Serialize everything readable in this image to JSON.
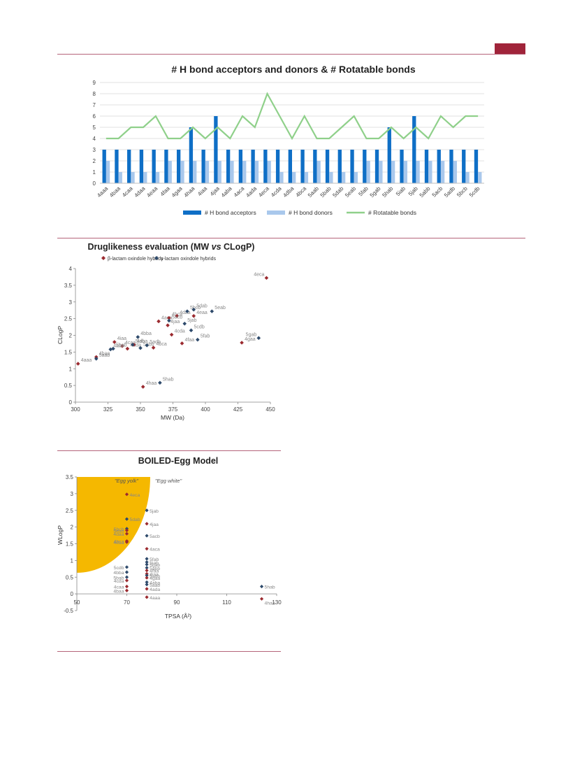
{
  "page": {
    "accent_color": "#a0243a",
    "rule_color": "#b5647a"
  },
  "chart_data": [
    {
      "type": "bar",
      "title": "# H bond acceptors and donors & # Rotatable bonds",
      "categories": [
        "4aaa",
        "4baa",
        "4caa",
        "4daa",
        "4eaa",
        "4faa",
        "4gaa",
        "4haa",
        "4iaa",
        "4jaa",
        "4aba",
        "4aca",
        "4ada",
        "4eca",
        "4cda",
        "4dba",
        "4bca",
        "5aab",
        "5bab",
        "5dab",
        "5eab",
        "5fab",
        "5gab",
        "5hab",
        "5iab",
        "5jab",
        "5abb",
        "5acb",
        "5adb",
        "5bcb",
        "5cdb"
      ],
      "ylim": [
        0,
        9
      ],
      "yticks": [
        0,
        1,
        2,
        3,
        4,
        5,
        6,
        7,
        8,
        9
      ],
      "grid": true,
      "legend_position": "bottom",
      "series": [
        {
          "name": "# H bond acceptors",
          "kind": "bar",
          "color": "#0f6fc6",
          "values": [
            3,
            3,
            3,
            3,
            3,
            3,
            3,
            5,
            3,
            6,
            3,
            3,
            3,
            3,
            3,
            3,
            3,
            3,
            3,
            3,
            3,
            3,
            3,
            5,
            3,
            6,
            3,
            3,
            3,
            3,
            3
          ]
        },
        {
          "name": "# H bond donors",
          "kind": "bar",
          "color": "#a9c8ec",
          "values": [
            2,
            1,
            1,
            1,
            1,
            2,
            2,
            2,
            2,
            2,
            2,
            2,
            2,
            2,
            1,
            1,
            1,
            2,
            1,
            1,
            1,
            2,
            2,
            2,
            2,
            2,
            2,
            2,
            2,
            1,
            1
          ]
        },
        {
          "name": "# Rotatable bonds",
          "kind": "line",
          "color": "#8fd08a",
          "values": [
            4,
            4,
            5,
            5,
            6,
            4,
            4,
            5,
            4,
            5,
            4,
            6,
            5,
            8,
            6,
            4,
            6,
            4,
            4,
            5,
            6,
            4,
            4,
            5,
            4,
            5,
            4,
            6,
            5,
            6,
            6
          ]
        }
      ]
    },
    {
      "type": "scatter",
      "title": "Druglikeness evaluation (MW vs CLogP)",
      "title_parts": [
        "Druglikeness evaluation (MW ",
        "vs",
        " CLogP)"
      ],
      "xlabel": "MW (Da)",
      "ylabel": "CLogP",
      "xlim": [
        300,
        450
      ],
      "ylim": [
        0,
        4
      ],
      "xticks": [
        300,
        325,
        350,
        375,
        400,
        425,
        450
      ],
      "yticks": [
        0,
        0.5,
        1,
        1.5,
        2,
        2.5,
        3,
        3.5,
        4
      ],
      "legend_position": "top-left",
      "series": [
        {
          "name": "β-lactam oxindole hybrids",
          "color": "#9b2a2f",
          "points": [
            {
              "label": "4aaa",
              "x": 302,
              "y": 1.15
            },
            {
              "label": "4baa",
              "x": 316,
              "y": 1.35
            },
            {
              "label": "4iaa",
              "x": 330,
              "y": 1.8
            },
            {
              "label": "4caa",
              "x": 336,
              "y": 1.68
            },
            {
              "label": "4ada",
              "x": 340,
              "y": 1.6
            },
            {
              "label": "4dba",
              "x": 345,
              "y": 1.72
            },
            {
              "label": "4bca",
              "x": 360,
              "y": 1.63
            },
            {
              "label": "4aca",
              "x": 364,
              "y": 2.42
            },
            {
              "label": "4bca",
              "x": 372,
              "y": 2.52
            },
            {
              "label": "4daa",
              "x": 378,
              "y": 2.58
            },
            {
              "label": "4eaa",
              "x": 391,
              "y": 2.58
            },
            {
              "label": "4jaa",
              "x": 371,
              "y": 2.3
            },
            {
              "label": "4cda",
              "x": 374,
              "y": 2.02
            },
            {
              "label": "4faa",
              "x": 382,
              "y": 1.76
            },
            {
              "label": "4gaa",
              "x": 428,
              "y": 1.78
            },
            {
              "label": "4eca",
              "x": 447,
              "y": 3.72
            },
            {
              "label": "4haa",
              "x": 352,
              "y": 0.46
            }
          ]
        },
        {
          "name": "γ-lactam oxindole hybrids",
          "color": "#2e4a6b",
          "points": [
            {
              "label": "5aab",
              "x": 316,
              "y": 1.3
            },
            {
              "label": "5bab",
              "x": 329,
              "y": 1.6
            },
            {
              "label": "4abe",
              "x": 327,
              "y": 1.58
            },
            {
              "label": "5iab",
              "x": 344,
              "y": 1.72
            },
            {
              "label": "4bba",
              "x": 348,
              "y": 1.95
            },
            {
              "label": "5abb",
              "x": 350,
              "y": 1.62
            },
            {
              "label": "5adb",
              "x": 355,
              "y": 1.7
            },
            {
              "label": "5acb",
              "x": 372,
              "y": 2.44
            },
            {
              "label": "5bcb",
              "x": 386,
              "y": 2.72
            },
            {
              "label": "5dab",
              "x": 391,
              "y": 2.77
            },
            {
              "label": "5eab",
              "x": 405,
              "y": 2.72
            },
            {
              "label": "5jab",
              "x": 384,
              "y": 2.35
            },
            {
              "label": "5cdb",
              "x": 389,
              "y": 2.15
            },
            {
              "label": "5fab",
              "x": 394,
              "y": 1.87
            },
            {
              "label": "5gab",
              "x": 441,
              "y": 1.92
            },
            {
              "label": "5hab",
              "x": 365,
              "y": 0.58
            }
          ]
        }
      ]
    },
    {
      "type": "scatter",
      "title": "BOILED-Egg Model",
      "xlabel": "TPSA (Å²)",
      "ylabel": "WLogP",
      "xlim": [
        50,
        130
      ],
      "ylim": [
        -0.5,
        3.5
      ],
      "xticks": [
        50,
        70,
        90,
        110,
        130
      ],
      "yticks": [
        -0.5,
        0,
        0.5,
        1,
        1.5,
        2,
        2.5,
        3,
        3.5
      ],
      "annotations": [
        "\"Egg yolk\"",
        "\"Egg white\""
      ],
      "colors": {
        "yolk": "#f5b800",
        "beta": "#9b2a2f",
        "gamma": "#2e4a6b"
      },
      "points": [
        {
          "label": "4eca",
          "x": 70,
          "y": 2.98,
          "group": "beta"
        },
        {
          "label": "5jab",
          "x": 78,
          "y": 2.5,
          "group": "gamma"
        },
        {
          "label": "5dab",
          "x": 70,
          "y": 2.24,
          "group": "gamma"
        },
        {
          "label": "4jaa",
          "x": 78,
          "y": 2.1,
          "group": "beta"
        },
        {
          "label": "5bcb",
          "x": 70,
          "y": 1.95,
          "group": "gamma"
        },
        {
          "label": "5eab",
          "x": 70,
          "y": 1.9,
          "group": "beta"
        },
        {
          "label": "4daa",
          "x": 70,
          "y": 1.8,
          "group": "beta"
        },
        {
          "label": "5acb",
          "x": 78,
          "y": 1.74,
          "group": "gamma"
        },
        {
          "label": "4bca",
          "x": 70,
          "y": 1.58,
          "group": "beta"
        },
        {
          "label": "4eaa",
          "x": 70,
          "y": 1.55,
          "group": "beta"
        },
        {
          "label": "4aca",
          "x": 78,
          "y": 1.35,
          "group": "beta"
        },
        {
          "label": "5fab",
          "x": 78,
          "y": 1.05,
          "group": "gamma"
        },
        {
          "label": "5iab",
          "x": 78,
          "y": 0.95,
          "group": "gamma"
        },
        {
          "label": "5gab",
          "x": 78,
          "y": 0.88,
          "group": "gamma"
        },
        {
          "label": "5cdb",
          "x": 70,
          "y": 0.8,
          "group": "gamma"
        },
        {
          "label": "5abb",
          "x": 78,
          "y": 0.78,
          "group": "gamma"
        },
        {
          "label": "4faa",
          "x": 78,
          "y": 0.7,
          "group": "beta"
        },
        {
          "label": "4bba",
          "x": 70,
          "y": 0.65,
          "group": "gamma"
        },
        {
          "label": "4iaa",
          "x": 78,
          "y": 0.6,
          "group": "beta"
        },
        {
          "label": "5adb",
          "x": 78,
          "y": 0.55,
          "group": "gamma"
        },
        {
          "label": "5bab",
          "x": 70,
          "y": 0.5,
          "group": "gamma"
        },
        {
          "label": "4gaa",
          "x": 78,
          "y": 0.48,
          "group": "beta"
        },
        {
          "label": "4cda",
          "x": 70,
          "y": 0.4,
          "group": "beta"
        },
        {
          "label": "4aba",
          "x": 78,
          "y": 0.35,
          "group": "gamma"
        },
        {
          "label": "5aab",
          "x": 78,
          "y": 0.28,
          "group": "gamma"
        },
        {
          "label": "4caa",
          "x": 70,
          "y": 0.22,
          "group": "beta"
        },
        {
          "label": "4ada",
          "x": 78,
          "y": 0.15,
          "group": "beta"
        },
        {
          "label": "4baa",
          "x": 70,
          "y": 0.1,
          "group": "beta"
        },
        {
          "label": "4aaa",
          "x": 78,
          "y": -0.1,
          "group": "beta"
        },
        {
          "label": "5hab",
          "x": 124,
          "y": 0.22,
          "group": "gamma"
        },
        {
          "label": "4haa",
          "x": 124,
          "y": -0.15,
          "group": "beta"
        }
      ]
    }
  ]
}
